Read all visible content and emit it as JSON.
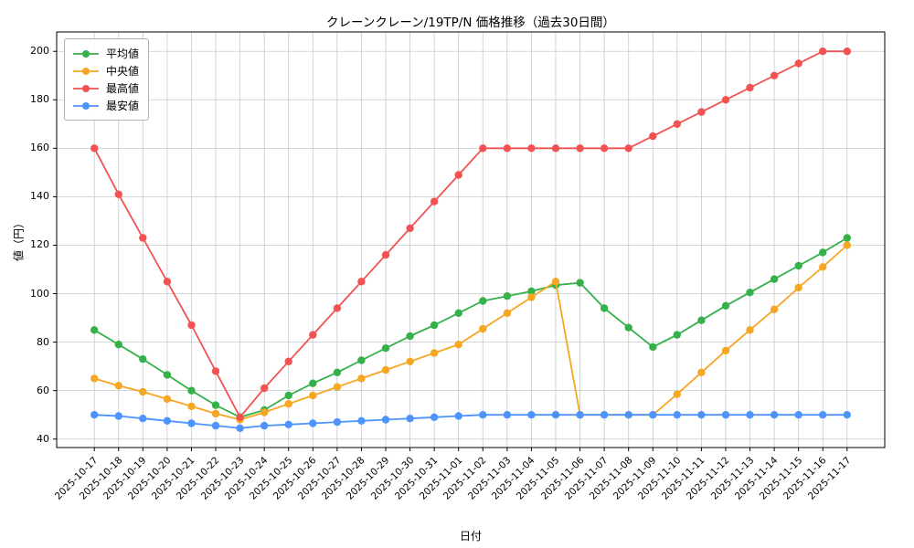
{
  "title": "クレーンクレーン/19TP/N 価格推移（過去30日間）",
  "xlabel": "日付",
  "ylabel": "値（円）",
  "chart_data": {
    "type": "line",
    "title": "クレーンクレーン/19TP/N 価格推移（過去30日間）",
    "xlabel": "日付",
    "ylabel": "値（円）",
    "grid": true,
    "legend_position": "upper-left",
    "ylim": [
      36.5,
      208
    ],
    "yticks": [
      40,
      60,
      80,
      100,
      120,
      140,
      160,
      180,
      200
    ],
    "categories": [
      "2025-10-17",
      "2025-10-18",
      "2025-10-19",
      "2025-10-20",
      "2025-10-21",
      "2025-10-22",
      "2025-10-23",
      "2025-10-24",
      "2025-10-25",
      "2025-10-26",
      "2025-10-27",
      "2025-10-28",
      "2025-10-29",
      "2025-10-30",
      "2025-10-31",
      "2025-11-01",
      "2025-11-02",
      "2025-11-03",
      "2025-11-04",
      "2025-11-05",
      "2025-11-06",
      "2025-11-07",
      "2025-11-08",
      "2025-11-09",
      "2025-11-10",
      "2025-11-11",
      "2025-11-12",
      "2025-11-13",
      "2025-11-14",
      "2025-11-15",
      "2025-11-16",
      "2025-11-17"
    ],
    "series": [
      {
        "name": "平均値",
        "color": "#34b14a",
        "values": [
          85,
          79,
          73,
          66.5,
          60,
          54,
          49,
          52,
          58,
          63,
          67.5,
          72.5,
          77.5,
          82.5,
          87,
          92,
          97,
          99,
          101,
          103.5,
          104.5,
          94,
          86,
          78,
          83,
          89,
          95,
          100.5,
          106,
          111.5,
          117,
          123
        ]
      },
      {
        "name": "中央値",
        "color": "#f5a623",
        "values": [
          65,
          62,
          59.5,
          56.5,
          53.5,
          50.5,
          48,
          51,
          54.5,
          58,
          61.5,
          65,
          68.5,
          72,
          75.5,
          79,
          85.5,
          92,
          98.5,
          105,
          50,
          50,
          50,
          50,
          58.5,
          67.5,
          76.5,
          85,
          93.5,
          102.5,
          111,
          120
        ]
      },
      {
        "name": "最高値",
        "color": "#f25252",
        "values": [
          160,
          141,
          123,
          105,
          87,
          68,
          49,
          61,
          72,
          83,
          94,
          105,
          116,
          127,
          138,
          149,
          160,
          160,
          160,
          160,
          160,
          160,
          160,
          165,
          170,
          175,
          180,
          185,
          190,
          195,
          200,
          200
        ]
      },
      {
        "name": "最安値",
        "color": "#4d94ff",
        "values": [
          50,
          49.5,
          48.5,
          47.5,
          46.5,
          45.5,
          44.5,
          45.5,
          46,
          46.5,
          47,
          47.5,
          48,
          48.5,
          49,
          49.5,
          50,
          50,
          50,
          50,
          50,
          50,
          50,
          50,
          50,
          50,
          50,
          50,
          50,
          50,
          50,
          50
        ]
      }
    ]
  }
}
